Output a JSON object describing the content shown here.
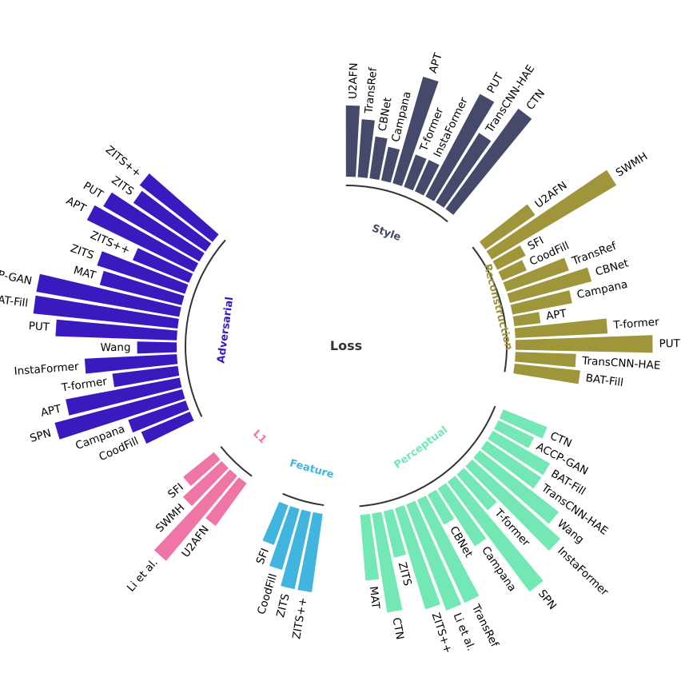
{
  "chart_data": {
    "type": "radial-bar",
    "title": "",
    "center_label": "Loss",
    "groups": [
      {
        "name": "Style",
        "color": "#454a6a",
        "label_color": "#454a6a",
        "items": [
          "U2AFN",
          "TransRef",
          "CBNet",
          "Campana",
          "APT",
          "T-former",
          "InstaFormer",
          "PUT",
          "TransCNN-HAE",
          "CTN"
        ],
        "values": [
          0.27,
          0.22,
          0.16,
          0.13,
          0.42,
          0.13,
          0.13,
          0.44,
          0.31,
          0.47
        ]
      },
      {
        "name": "Reconstruction",
        "color": "#9f953b",
        "label_color": "#9f953b",
        "items": [
          "U2AFN",
          "SWMH",
          "SFI",
          "CoodFill",
          "TransRef",
          "CBNet",
          "Campana",
          "APT",
          "T-former",
          "PUT",
          "TransCNN-HAE",
          "BAT-Fill"
        ],
        "values": [
          0.23,
          0.55,
          0.12,
          0.1,
          0.25,
          0.32,
          0.23,
          0.1,
          0.35,
          0.52,
          0.23,
          0.25
        ]
      },
      {
        "name": "Perceptual",
        "color": "#73e8b5",
        "label_color": "#73e8b5",
        "items": [
          "CTN",
          "ACCP-GAN",
          "BAT-Fill",
          "TransCNN-HAE",
          "Wang",
          "InstaFormer",
          "T-former",
          "SPN",
          "Campana",
          "CBNet",
          "TransRef",
          "Li et al.",
          "ZITS++",
          "ZITS",
          "CTN",
          "MAT"
        ],
        "values": [
          0.18,
          0.15,
          0.25,
          0.25,
          0.38,
          0.45,
          0.18,
          0.52,
          0.26,
          0.13,
          0.43,
          0.43,
          0.4,
          0.18,
          0.38,
          0.25
        ]
      },
      {
        "name": "Feature",
        "color": "#41b5de",
        "label_color": "#41b5de",
        "items": [
          "ZITS++",
          "ZITS",
          "CoodFill",
          "SFI"
        ],
        "values": [
          0.3,
          0.3,
          0.24,
          0.16
        ]
      },
      {
        "name": "L1",
        "color": "#f075a7",
        "label_color": "#f075a7",
        "items": [
          "U2AFN",
          "Li et al.",
          "SWMH",
          "SFI"
        ],
        "values": [
          0.2,
          0.42,
          0.2,
          0.15
        ]
      },
      {
        "name": "Adversarial",
        "color": "#3a1abf",
        "label_color": "#3a1abf",
        "items": [
          "CoodFill",
          "Campana",
          "SPN",
          "APT",
          "T-former",
          "InstaFormer",
          "Wang",
          "PUT",
          "BAT-Fill",
          "ACCP-GAN",
          "MAT",
          "ZITS",
          "ZITS++",
          "APT",
          "PUT",
          "ZITS",
          "ZITS++"
        ],
        "values": [
          0.2,
          0.23,
          0.5,
          0.44,
          0.25,
          0.35,
          0.15,
          0.46,
          0.55,
          0.55,
          0.32,
          0.35,
          0.23,
          0.45,
          0.42,
          0.33,
          0.35
        ]
      }
    ]
  }
}
